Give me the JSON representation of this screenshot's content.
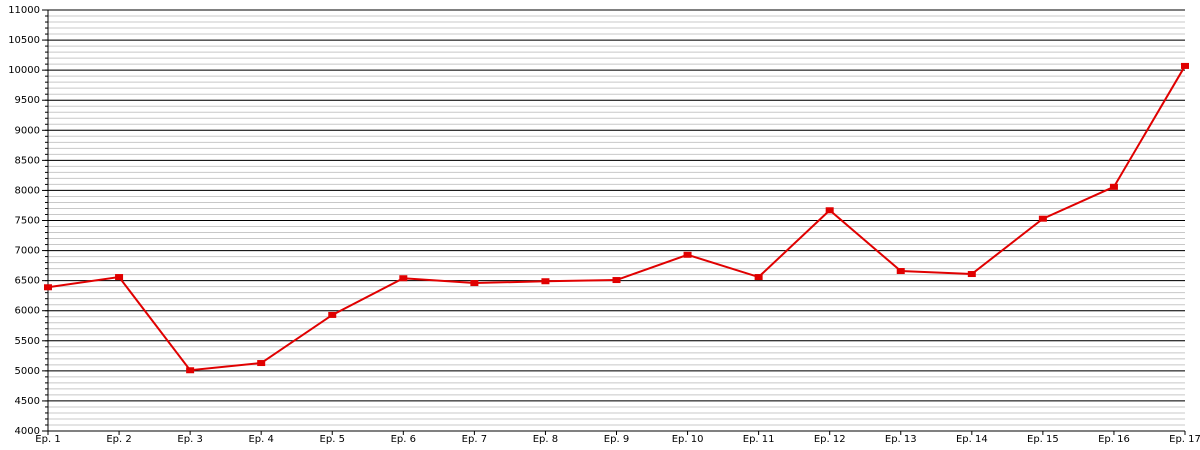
{
  "chart_data": {
    "type": "line",
    "categories": [
      "Ep. 1",
      "Ep. 2",
      "Ep. 3",
      "Ep. 4",
      "Ep. 5",
      "Ep. 6",
      "Ep. 7",
      "Ep. 8",
      "Ep. 9",
      "Ep. 10",
      "Ep. 11",
      "Ep. 12",
      "Ep. 13",
      "Ep. 14",
      "Ep. 15",
      "Ep. 16",
      "Ep. 17"
    ],
    "values": [
      6390,
      6560,
      5010,
      5130,
      5930,
      6540,
      6460,
      6490,
      6510,
      6930,
      6560,
      7670,
      6660,
      6610,
      7530,
      8060,
      10070
    ],
    "color": "#e00000",
    "ylim": [
      4000,
      11000
    ],
    "yticks": [
      4000,
      4500,
      5000,
      5500,
      6000,
      6500,
      7000,
      7500,
      8000,
      8500,
      9000,
      9500,
      10000,
      10500,
      11000
    ],
    "grid": true,
    "minor_grid": true
  }
}
